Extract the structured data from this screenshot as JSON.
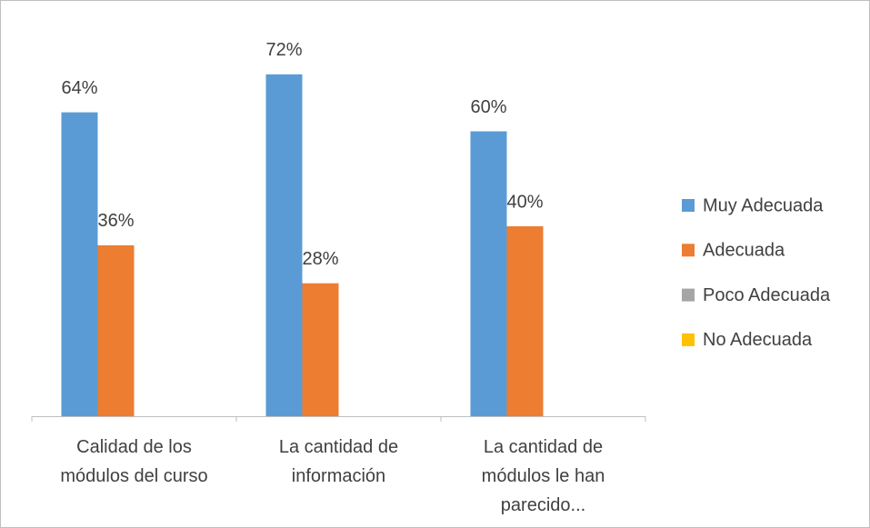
{
  "chart_data": {
    "type": "bar",
    "categories": [
      "Calidad de los módulos del curso",
      "La cantidad de información",
      "La cantidad de módulos le han parecido..."
    ],
    "series": [
      {
        "name": "Muy Adecuada",
        "color": "#5b9bd5",
        "values": [
          64,
          72,
          60
        ],
        "value_labels": [
          "64%",
          "72%",
          "60%"
        ]
      },
      {
        "name": "Adecuada",
        "color": "#ed7d31",
        "values": [
          36,
          28,
          40
        ],
        "value_labels": [
          "36%",
          "28%",
          "40%"
        ]
      },
      {
        "name": "Poco Adecuada",
        "color": "#a5a5a5",
        "values": [
          0,
          0,
          0
        ]
      },
      {
        "name": "No Adecuada",
        "color": "#ffc000",
        "values": [
          0,
          0,
          0
        ]
      }
    ],
    "ylim": [
      0,
      80
    ],
    "legend": "right"
  }
}
